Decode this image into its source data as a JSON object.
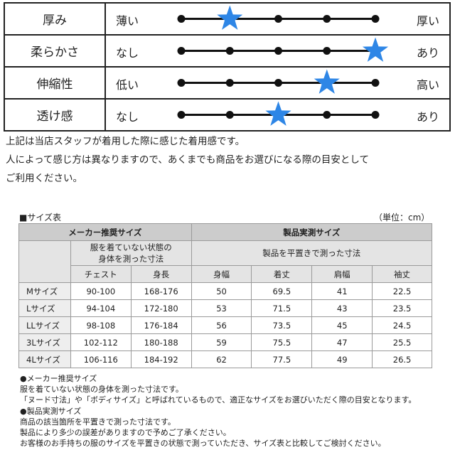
{
  "feel_rows": [
    {
      "name": "厚み",
      "low": "薄い",
      "high": "厚い",
      "level": 2
    },
    {
      "name": "柔らかさ",
      "low": "なし",
      "high": "あり",
      "level": 5
    },
    {
      "name": "伸縮性",
      "low": "低い",
      "high": "高い",
      "level": 4
    },
    {
      "name": "透け感",
      "low": "なし",
      "high": "あり",
      "level": 3
    }
  ],
  "scale_points": 5,
  "star_color": "#2e86e6",
  "notes": {
    "line1": "上記は当店スタッフが着用した際に感じた着用感です。",
    "line2": "人によって感じ方は異なりますので、あくまでも商品をお選びになる際の目安として",
    "line3": "ご利用ください。"
  },
  "size_table": {
    "title": "■サイズ表",
    "unit": "（単位：cm）",
    "group1": "メーカー推奨サイズ",
    "group2": "製品実測サイズ",
    "group1_sub": "服を着ていない状態の身体を測った寸法",
    "group1_sub_a": "服を着ていない状態の",
    "group1_sub_b": "身体を測った寸法",
    "group2_sub": "製品を平置きで測った寸法",
    "columns": [
      "チェスト",
      "身長",
      "身幅",
      "着丈",
      "肩幅",
      "袖丈"
    ],
    "rows": [
      {
        "size": "Mサイズ",
        "cells": [
          "90-100",
          "168-176",
          "50",
          "69.5",
          "41",
          "22.5"
        ]
      },
      {
        "size": "Lサイズ",
        "cells": [
          "94-104",
          "172-180",
          "53",
          "71.5",
          "43",
          "23.5"
        ]
      },
      {
        "size": "LLサイズ",
        "cells": [
          "98-108",
          "176-184",
          "56",
          "73.5",
          "45",
          "24.5"
        ]
      },
      {
        "size": "3Lサイズ",
        "cells": [
          "102-112",
          "180-188",
          "59",
          "75.5",
          "47",
          "25.5"
        ]
      },
      {
        "size": "4Lサイズ",
        "cells": [
          "106-116",
          "184-192",
          "62",
          "77.5",
          "49",
          "26.5"
        ]
      }
    ]
  },
  "footnotes": {
    "f1": "●メーカー推奨サイズ",
    "f2": "服を着ていない状態の身体を測った寸法です。",
    "f3": "「ヌード寸法」や「ボディサイズ」と呼ばれているもので、適正なサイズをお選びいただく際の目安となります。",
    "f4": "●製品実測サイズ",
    "f5": "商品の該当箇所を平置きで測った寸法です。",
    "f6": "製品により多少の誤差がありますので予めご了承ください。",
    "f7": "お客様のお手持ちの服のサイズを平置きの状態で測っていただき、サイズ表と比較してご検討ください。"
  }
}
